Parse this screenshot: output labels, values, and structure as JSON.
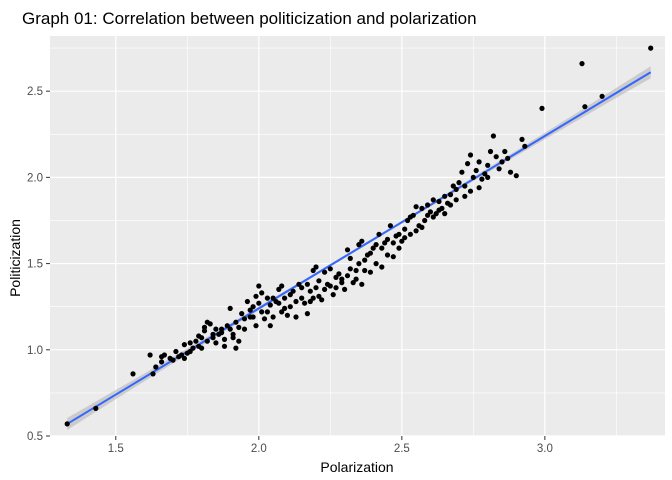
{
  "chart_data": {
    "type": "scatter",
    "title": "Graph 01: Correlation between politicization and polarization",
    "xlabel": "Polarization",
    "ylabel": "Politicization",
    "xlim": [
      1.27,
      3.42
    ],
    "ylim": [
      0.5,
      2.82
    ],
    "x_ticks": [
      1.5,
      2.0,
      2.5,
      3.0
    ],
    "x_tick_labels": [
      "1.5",
      "2.0",
      "2.5",
      "3.0"
    ],
    "y_ticks": [
      0.5,
      1.0,
      1.5,
      2.0,
      2.5
    ],
    "y_tick_labels": [
      "0.5",
      "1.0",
      "1.5",
      "2.0",
      "2.5"
    ],
    "grid": true,
    "legend": "none",
    "colors": {
      "panel": "#EBEBEB",
      "grid": "#FFFFFF",
      "points": "#000000",
      "fit_line": "#3366FF",
      "ribbon": "#B0B0B0"
    },
    "fit": {
      "method": "linear",
      "x": [
        1.33,
        3.37
      ],
      "y": [
        0.57,
        2.61
      ],
      "ribbon_halfwidth_ends": 0.035
    },
    "points": [
      [
        1.33,
        0.57
      ],
      [
        1.43,
        0.66
      ],
      [
        1.56,
        0.86
      ],
      [
        1.62,
        0.97
      ],
      [
        1.63,
        0.86
      ],
      [
        1.64,
        0.9
      ],
      [
        1.66,
        0.93
      ],
      [
        1.67,
        0.97
      ],
      [
        1.69,
        0.95
      ],
      [
        1.71,
        0.99
      ],
      [
        1.72,
        0.96
      ],
      [
        1.73,
        0.97
      ],
      [
        1.74,
        1.03
      ],
      [
        1.75,
        0.98
      ],
      [
        1.76,
        0.99
      ],
      [
        1.77,
        1.01
      ],
      [
        1.78,
        1.05
      ],
      [
        1.79,
        1.08
      ],
      [
        1.79,
        1.02
      ],
      [
        1.8,
        1.07
      ],
      [
        1.81,
        1.11
      ],
      [
        1.82,
        1.16
      ],
      [
        1.82,
        1.05
      ],
      [
        1.83,
        1.15
      ],
      [
        1.84,
        1.07
      ],
      [
        1.85,
        1.12
      ],
      [
        1.85,
        1.04
      ],
      [
        1.86,
        1.09
      ],
      [
        1.87,
        1.12
      ],
      [
        1.88,
        1.06
      ],
      [
        1.88,
        1.02
      ],
      [
        1.89,
        1.14
      ],
      [
        1.9,
        1.24
      ],
      [
        1.9,
        1.12
      ],
      [
        1.91,
        1.09
      ],
      [
        1.92,
        1.16
      ],
      [
        1.92,
        1.01
      ],
      [
        1.93,
        1.13
      ],
      [
        1.94,
        1.21
      ],
      [
        1.95,
        1.18
      ],
      [
        1.96,
        1.28
      ],
      [
        1.97,
        1.19
      ],
      [
        1.97,
        1.23
      ],
      [
        1.98,
        1.25
      ],
      [
        1.99,
        1.31
      ],
      [
        1.99,
        1.14
      ],
      [
        2.0,
        1.37
      ],
      [
        2.0,
        1.27
      ],
      [
        2.01,
        1.33
      ],
      [
        2.02,
        1.18
      ],
      [
        2.03,
        1.22
      ],
      [
        2.04,
        1.26
      ],
      [
        2.04,
        1.14
      ],
      [
        2.05,
        1.3
      ],
      [
        2.06,
        1.28
      ],
      [
        2.07,
        1.35
      ],
      [
        2.08,
        1.22
      ],
      [
        2.08,
        1.37
      ],
      [
        2.09,
        1.3
      ],
      [
        2.1,
        1.2
      ],
      [
        2.11,
        1.25
      ],
      [
        2.12,
        1.34
      ],
      [
        2.13,
        1.28
      ],
      [
        2.14,
        1.38
      ],
      [
        2.15,
        1.3
      ],
      [
        2.16,
        1.27
      ],
      [
        2.17,
        1.38
      ],
      [
        2.17,
        1.21
      ],
      [
        2.18,
        1.28
      ],
      [
        2.19,
        1.3
      ],
      [
        2.2,
        1.36
      ],
      [
        2.2,
        1.48
      ],
      [
        2.21,
        1.4
      ],
      [
        2.22,
        1.29
      ],
      [
        2.23,
        1.35
      ],
      [
        2.24,
        1.38
      ],
      [
        2.25,
        1.47
      ],
      [
        2.26,
        1.32
      ],
      [
        2.27,
        1.42
      ],
      [
        2.28,
        1.44
      ],
      [
        2.29,
        1.39
      ],
      [
        2.3,
        1.35
      ],
      [
        2.31,
        1.58
      ],
      [
        2.31,
        1.43
      ],
      [
        2.32,
        1.47
      ],
      [
        2.33,
        1.39
      ],
      [
        2.34,
        1.46
      ],
      [
        2.35,
        1.5
      ],
      [
        2.36,
        1.38
      ],
      [
        2.36,
        1.63
      ],
      [
        2.37,
        1.52
      ],
      [
        2.38,
        1.55
      ],
      [
        2.39,
        1.45
      ],
      [
        2.4,
        1.59
      ],
      [
        2.41,
        1.5
      ],
      [
        2.42,
        1.67
      ],
      [
        2.43,
        1.59
      ],
      [
        2.44,
        1.62
      ],
      [
        2.45,
        1.55
      ],
      [
        2.46,
        1.72
      ],
      [
        2.47,
        1.62
      ],
      [
        2.47,
        1.54
      ],
      [
        2.48,
        1.66
      ],
      [
        2.49,
        1.67
      ],
      [
        2.5,
        1.63
      ],
      [
        2.51,
        1.7
      ],
      [
        2.52,
        1.75
      ],
      [
        2.53,
        1.67
      ],
      [
        2.54,
        1.78
      ],
      [
        2.55,
        1.69
      ],
      [
        2.56,
        1.72
      ],
      [
        2.57,
        1.82
      ],
      [
        2.58,
        1.75
      ],
      [
        2.59,
        1.84
      ],
      [
        2.6,
        1.8
      ],
      [
        2.61,
        1.87
      ],
      [
        2.62,
        1.79
      ],
      [
        2.63,
        1.86
      ],
      [
        2.64,
        1.82
      ],
      [
        2.65,
        1.89
      ],
      [
        2.66,
        1.85
      ],
      [
        2.67,
        1.9
      ],
      [
        2.68,
        1.95
      ],
      [
        2.69,
        1.87
      ],
      [
        2.7,
        1.97
      ],
      [
        2.71,
        2.03
      ],
      [
        2.72,
        1.95
      ],
      [
        2.73,
        2.08
      ],
      [
        2.74,
        2.13
      ],
      [
        2.75,
        2.0
      ],
      [
        2.76,
        2.04
      ],
      [
        2.77,
        2.09
      ],
      [
        2.78,
        1.99
      ],
      [
        2.79,
        2.02
      ],
      [
        2.8,
        2.07
      ],
      [
        2.81,
        2.15
      ],
      [
        2.82,
        2.24
      ],
      [
        2.83,
        2.12
      ],
      [
        2.84,
        2.05
      ],
      [
        2.85,
        2.09
      ],
      [
        2.86,
        2.15
      ],
      [
        2.87,
        2.11
      ],
      [
        2.88,
        2.03
      ],
      [
        2.9,
        2.01
      ],
      [
        2.92,
        2.22
      ],
      [
        2.93,
        2.18
      ],
      [
        2.99,
        2.4
      ],
      [
        3.13,
        2.66
      ],
      [
        3.14,
        2.41
      ],
      [
        3.2,
        2.47
      ],
      [
        3.37,
        2.75
      ],
      [
        1.7,
        0.94
      ],
      [
        1.76,
        1.04
      ],
      [
        1.8,
        1.01
      ],
      [
        1.84,
        1.09
      ],
      [
        1.87,
        1.1
      ],
      [
        1.91,
        1.07
      ],
      [
        1.93,
        1.05
      ],
      [
        1.95,
        1.12
      ],
      [
        1.98,
        1.19
      ],
      [
        2.01,
        1.22
      ],
      [
        2.03,
        1.3
      ],
      [
        2.05,
        1.19
      ],
      [
        2.07,
        1.27
      ],
      [
        2.09,
        1.24
      ],
      [
        2.11,
        1.32
      ],
      [
        2.13,
        1.19
      ],
      [
        2.15,
        1.36
      ],
      [
        2.18,
        1.34
      ],
      [
        2.21,
        1.31
      ],
      [
        2.23,
        1.45
      ],
      [
        2.25,
        1.37
      ],
      [
        2.27,
        1.36
      ],
      [
        2.29,
        1.41
      ],
      [
        2.32,
        1.53
      ],
      [
        2.34,
        1.41
      ],
      [
        2.37,
        1.46
      ],
      [
        2.39,
        1.56
      ],
      [
        2.41,
        1.61
      ],
      [
        2.43,
        1.48
      ],
      [
        2.45,
        1.64
      ],
      [
        2.49,
        1.59
      ],
      [
        2.51,
        1.65
      ],
      [
        2.53,
        1.77
      ],
      [
        2.55,
        1.83
      ],
      [
        2.57,
        1.71
      ],
      [
        2.59,
        1.78
      ],
      [
        2.61,
        1.77
      ],
      [
        2.63,
        1.81
      ],
      [
        2.65,
        1.79
      ],
      [
        2.67,
        1.84
      ],
      [
        2.69,
        1.93
      ],
      [
        2.72,
        1.89
      ],
      [
        2.74,
        1.92
      ],
      [
        2.77,
        1.94
      ],
      [
        2.8,
        2.0
      ],
      [
        1.66,
        0.96
      ],
      [
        1.74,
        0.95
      ],
      [
        1.81,
        1.13
      ],
      [
        2.19,
        1.46
      ],
      [
        2.35,
        1.61
      ]
    ]
  }
}
